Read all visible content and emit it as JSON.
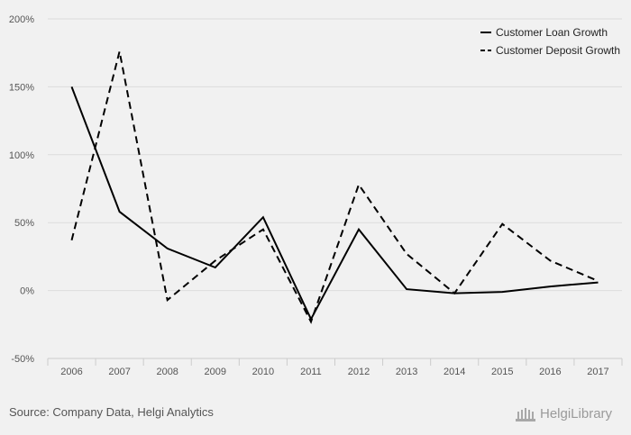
{
  "chart_data": {
    "type": "line",
    "categories": [
      "2006",
      "2007",
      "2008",
      "2009",
      "2010",
      "2011",
      "2012",
      "2013",
      "2014",
      "2015",
      "2016",
      "2017"
    ],
    "series": [
      {
        "name": "Customer Loan Growth",
        "style": "solid",
        "color": "#000000",
        "values": [
          150,
          58,
          31,
          17,
          54,
          -21,
          45,
          1,
          -2,
          -1,
          3,
          6
        ]
      },
      {
        "name": "Customer Deposit Growth",
        "style": "dashed",
        "color": "#000000",
        "values": [
          37,
          176,
          -7,
          22,
          45,
          -23,
          78,
          27,
          -2,
          49,
          22,
          7
        ]
      }
    ],
    "ylim": [
      -50,
      200
    ],
    "y_ticks": [
      -50,
      0,
      50,
      100,
      150,
      200
    ],
    "y_tick_labels": [
      "-50%",
      "0%",
      "50%",
      "100%",
      "150%",
      "200%"
    ],
    "grid": true,
    "legend_position": "top-right"
  },
  "footer": {
    "source": "Source: Company Data, Helgi Analytics",
    "logo_text": "HelgiLibrary"
  }
}
